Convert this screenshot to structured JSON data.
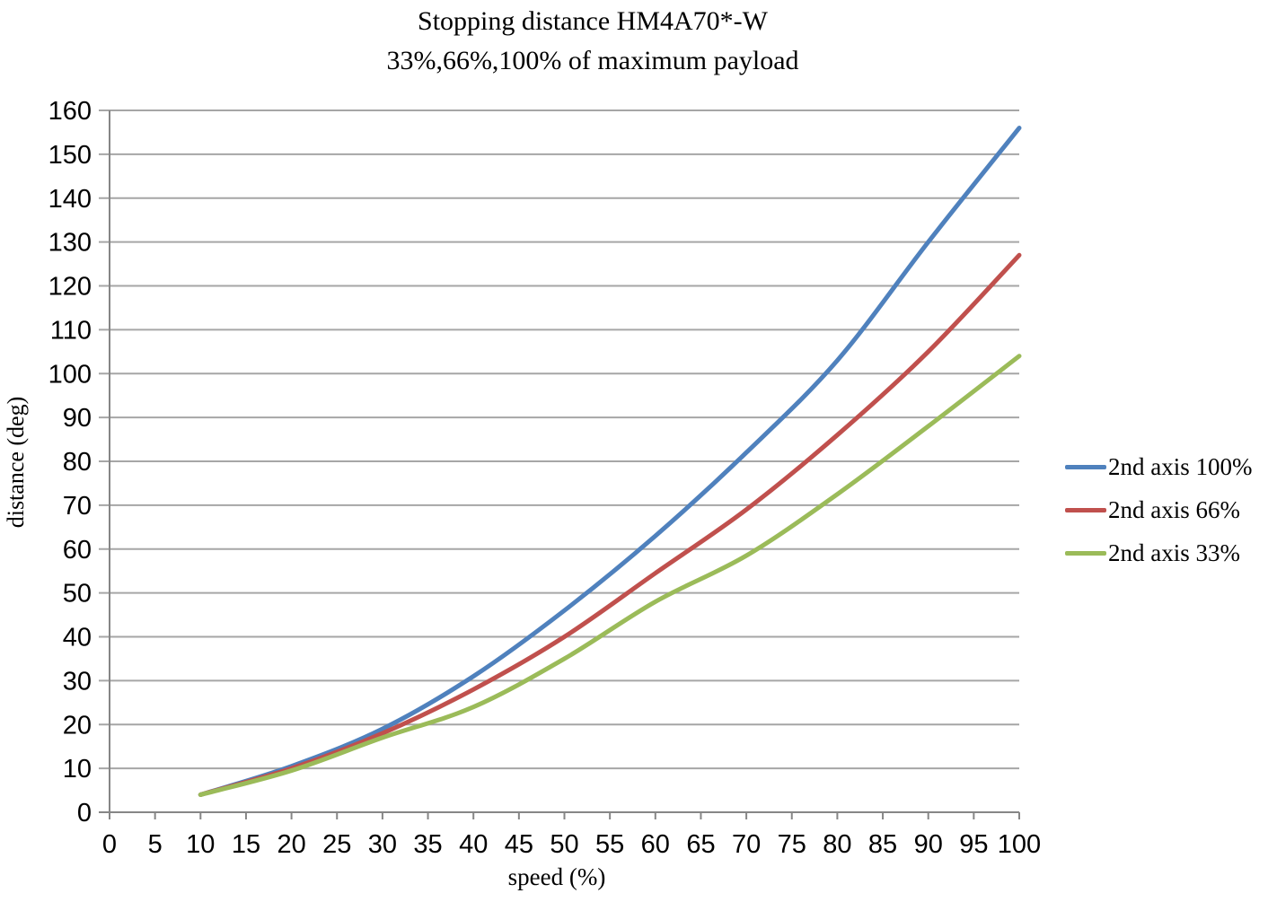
{
  "chart_data": {
    "type": "line",
    "title": "Stopping distance HM4A70*-W",
    "subtitle": "33%,66%,100% of maximum payload",
    "xlabel": "speed (%)",
    "ylabel": "distance (deg)",
    "xlim": [
      0,
      100
    ],
    "ylim": [
      0,
      160
    ],
    "x_ticks": [
      0,
      5,
      10,
      15,
      20,
      25,
      30,
      35,
      40,
      45,
      50,
      55,
      60,
      65,
      70,
      75,
      80,
      85,
      90,
      95,
      100
    ],
    "y_ticks": [
      0,
      10,
      20,
      30,
      40,
      50,
      60,
      70,
      80,
      90,
      100,
      110,
      120,
      130,
      140,
      150,
      160
    ],
    "grid": "horizontal",
    "legend_position": "right",
    "smooth": true,
    "x": [
      10,
      20,
      30,
      40,
      50,
      60,
      70,
      80,
      90,
      100
    ],
    "series": [
      {
        "name": "2nd axis 100%",
        "color": "#4F81BD",
        "values": [
          4,
          10.5,
          19,
          31,
          46,
          63,
          82,
          103,
          130,
          156
        ]
      },
      {
        "name": "2nd axis 66%",
        "color": "#C0504D",
        "values": [
          4,
          10,
          18,
          28,
          40,
          54.5,
          69,
          86,
          105,
          127
        ]
      },
      {
        "name": "2nd axis 33%",
        "color": "#9BBB59",
        "values": [
          4,
          9.5,
          17,
          24,
          35,
          48,
          58.5,
          72.5,
          88,
          104
        ]
      }
    ],
    "colors": {
      "gridline": "#A6A6A6",
      "axis": "#868686",
      "tick_text": "#000000"
    }
  }
}
